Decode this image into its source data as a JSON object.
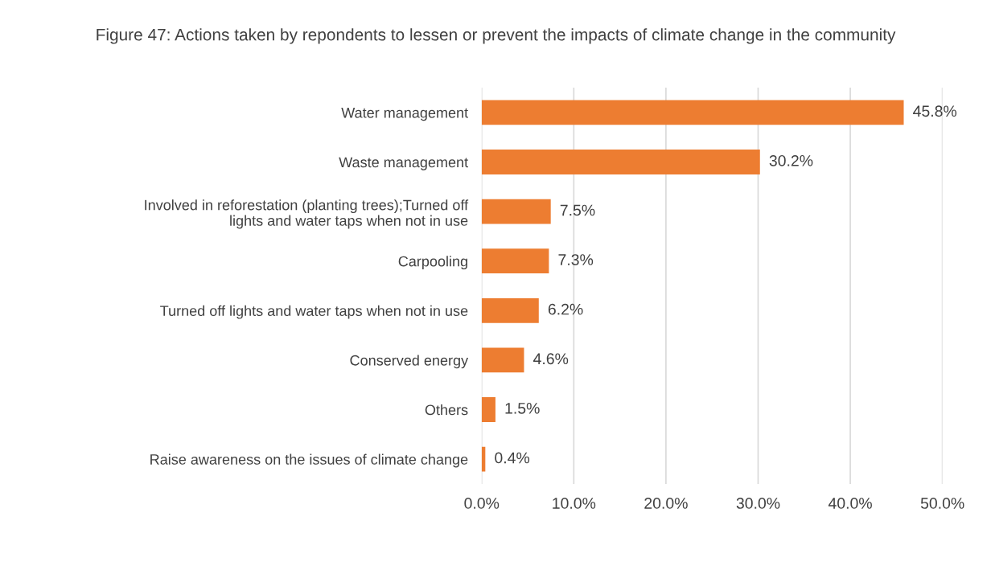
{
  "chart_data": {
    "type": "bar",
    "orientation": "horizontal",
    "title": "Figure 47: Actions taken by repondents to lessen or prevent the impacts of climate change in the community",
    "categories": [
      "Water management",
      "Waste management",
      "Involved in reforestation (planting trees);Turned off lights and water taps when not in use",
      "Carpooling",
      "Turned off lights and water taps when not in use",
      "Conserved energy",
      "Others",
      "Raise awareness on the issues of climate change"
    ],
    "values": [
      45.8,
      30.2,
      7.5,
      7.3,
      6.2,
      4.6,
      1.5,
      0.4
    ],
    "value_labels": [
      "45.8%",
      "30.2%",
      "7.5%",
      "7.3%",
      "6.2%",
      "4.6%",
      "1.5%",
      "0.4%"
    ],
    "color": "#ed7d31",
    "xlim": [
      0,
      50
    ],
    "xticks": [
      {
        "value": 0,
        "label": "0.0%"
      },
      {
        "value": 10,
        "label": "10.0%"
      },
      {
        "value": 20,
        "label": "20.0%"
      },
      {
        "value": 30,
        "label": "30.0%"
      },
      {
        "value": 40,
        "label": "40.0%"
      },
      {
        "value": 50,
        "label": "50.0%"
      }
    ],
    "grid": "x"
  }
}
